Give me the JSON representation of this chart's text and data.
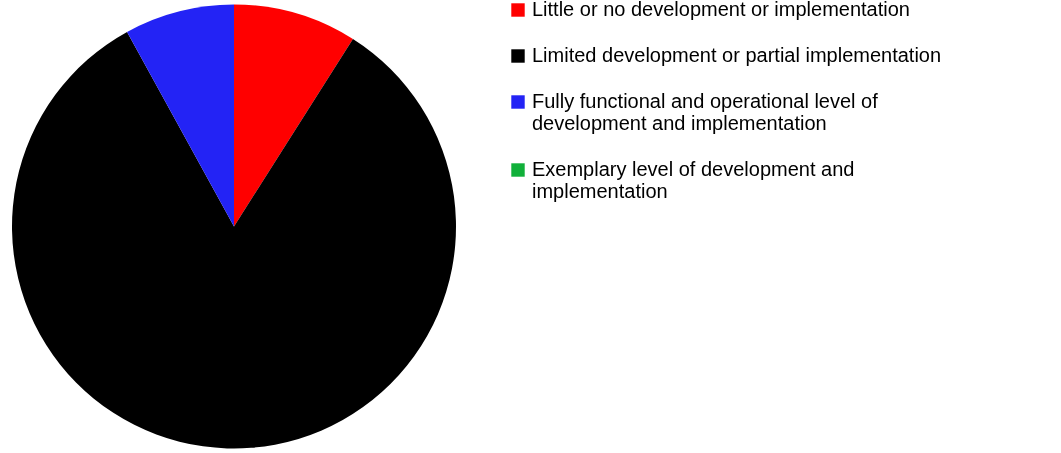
{
  "chart_data": {
    "type": "pie",
    "categories": [
      "Little or no development or implementation",
      "Limited development or partial implementation",
      "Fully functional and operational level of development and implementation",
      "Exemplary level of development and implementation"
    ],
    "values": [
      9,
      83,
      8,
      0
    ],
    "colors": [
      "#ff0000",
      "#000000",
      "#2323f5",
      "#11b03a"
    ],
    "legend": "right"
  }
}
